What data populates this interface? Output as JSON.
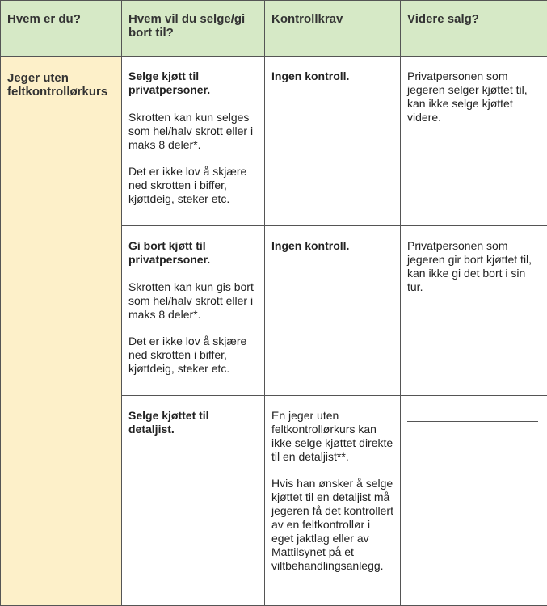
{
  "table": {
    "header": [
      "Hvem er du?",
      "Hvem vil du selge/gi bort til?",
      "Kontrollkrav",
      "Videre salg?"
    ],
    "first_column": "Jeger uten feltkontrollørkurs",
    "rows": [
      {
        "offer": {
          "bold": [
            "Selge kjøtt til privatpersoner."
          ],
          "text": [
            "Skrotten kan kun selges som hel/halv skrott eller i maks 8 deler*.",
            "Det er ikke lov å skjære ned skrotten i biffer, kjøttdeig, steker etc."
          ]
        },
        "control": {
          "bold": [
            "Ingen kontroll."
          ]
        },
        "resale": {
          "text": [
            "Privatpersonen som jegeren selger kjøttet til, kan ikke selge kjøttet videre."
          ]
        }
      },
      {
        "offer": {
          "bold": [
            "Gi bort kjøtt til privatpersoner."
          ],
          "text": [
            "Skrotten kan kun gis bort som hel/halv skrott eller i maks 8 deler*.",
            "Det er ikke lov å skjære ned skrotten i biffer, kjøttdeig, steker etc."
          ]
        },
        "control": {
          "bold": [
            "Ingen kontroll."
          ]
        },
        "resale": {
          "text": [
            "Privatpersonen som jegeren gir bort kjøttet til, kan ikke gi det bort i sin tur."
          ]
        }
      },
      {
        "offer": {
          "bold": [
            "Selge kjøttet til detaljist."
          ]
        },
        "control": {
          "text": [
            "En jeger uten feltkontrollørkurs kan ikke selge kjøttet direkte til en detaljist**.",
            "Hvis han ønsker å selge kjøttet til en detaljist må jegeren få det kontrollert av en feltkontrollør i eget jaktlag eller av Mattilsynet på et viltbehandlingsanlegg."
          ]
        },
        "resale": {}
      }
    ]
  }
}
